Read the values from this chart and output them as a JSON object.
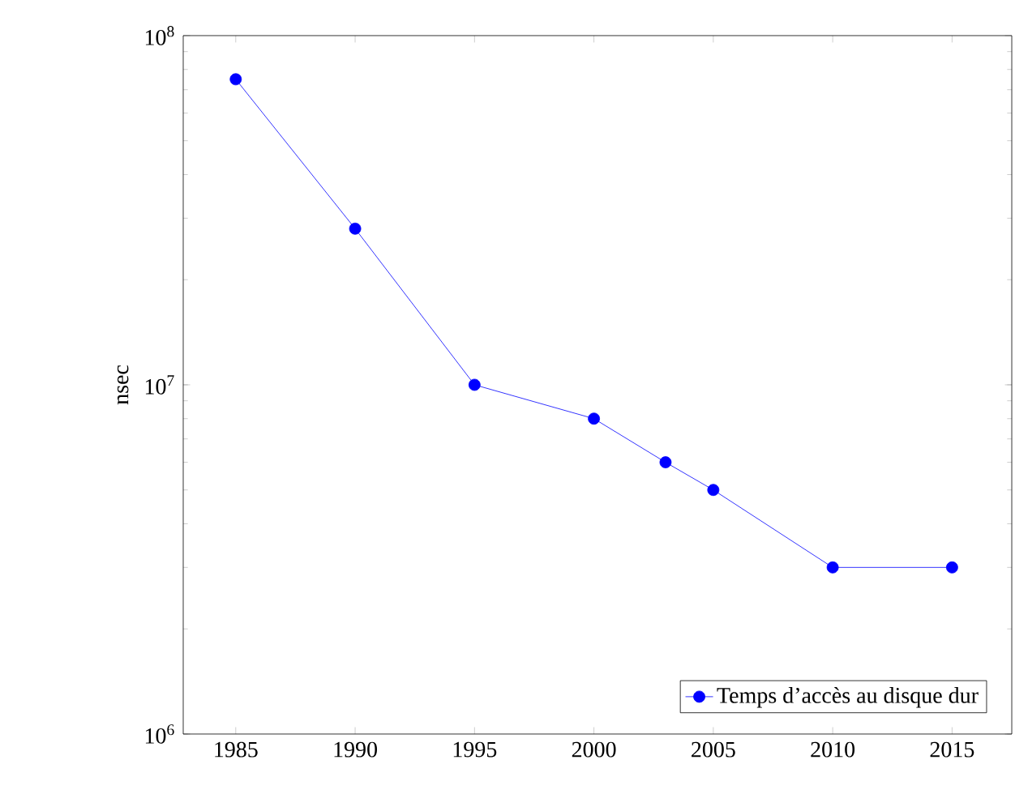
{
  "chart_data": {
    "type": "line",
    "ylabel": "nsec",
    "log": "y",
    "x": [
      1985,
      1990,
      1995,
      2000,
      2003,
      2005,
      2010,
      2015
    ],
    "series": [
      {
        "name": "Temps d’accès au disque dur",
        "color": "#0000ff",
        "values": [
          75000000,
          28000000,
          10000000,
          8000000,
          6000000,
          5000000,
          3000000,
          3000000
        ]
      }
    ],
    "xlim": [
      1982.8,
      2017.5
    ],
    "ylim": [
      1000000,
      100000000
    ],
    "xticks": [
      1985,
      1990,
      1995,
      2000,
      2005,
      2010,
      2015
    ],
    "yticks": [
      {
        "value": 1000000,
        "label": "10$^{6}$"
      },
      {
        "value": 10000000,
        "label": "10$^{7}$"
      },
      {
        "value": 100000000,
        "label": "10$^{8}$"
      }
    ],
    "legend": "bottom right",
    "marker": "circle",
    "line_style": "solid",
    "grid": false
  }
}
